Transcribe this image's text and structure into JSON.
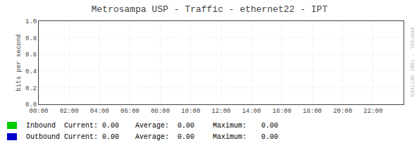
{
  "chart_data": {
    "type": "line",
    "title": "Metrosampa USP - Traffic - ethernet22 - IPT",
    "ylabel": "bits per second",
    "x": [],
    "xlim": [
      0,
      86400
    ],
    "xticks": [
      {
        "value": 0,
        "label": "00:00"
      },
      {
        "value": 7200,
        "label": "02:00"
      },
      {
        "value": 14400,
        "label": "04:00"
      },
      {
        "value": 21600,
        "label": "06:00"
      },
      {
        "value": 28800,
        "label": "08:00"
      },
      {
        "value": 36000,
        "label": "10:00"
      },
      {
        "value": 43200,
        "label": "12:00"
      },
      {
        "value": 50400,
        "label": "14:00"
      },
      {
        "value": 57600,
        "label": "16:00"
      },
      {
        "value": 64800,
        "label": "18:00"
      },
      {
        "value": 72000,
        "label": "20:00"
      },
      {
        "value": 79200,
        "label": "22:00"
      }
    ],
    "ylim": [
      0,
      1.0
    ],
    "yticks": [
      {
        "value": 0,
        "label": "0.0"
      },
      0.2,
      0.4,
      0.6,
      0.8,
      {
        "value": 1.0,
        "label": "1.0"
      }
    ],
    "grid": true,
    "series": [
      {
        "name": "Inbound",
        "color": "#00cc00",
        "values": [],
        "current": "0.00",
        "average": "0.00",
        "maximum": "0.00"
      },
      {
        "name": "Outbound",
        "color": "#0000cc",
        "values": [],
        "current": "0.00",
        "average": "0.00",
        "maximum": "0.00"
      }
    ],
    "stat_labels": [
      "Current:",
      "Average:",
      "Maximum:"
    ],
    "annotations": [
      "RRDTOOL / TOBI OETIKER"
    ]
  }
}
